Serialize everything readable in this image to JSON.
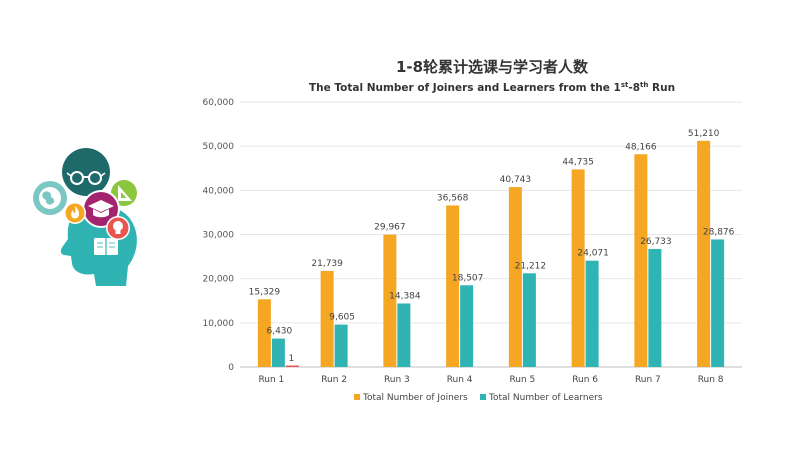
{
  "chart_data": {
    "type": "bar",
    "title": "1-8轮累计选课与学习者人数",
    "subtitle": {
      "prefix": "The Total Number of Joiners and Learners from the 1",
      "sup1": "st",
      "middle": "-8",
      "sup2": "th",
      "suffix": " Run"
    },
    "categories": [
      "Run 1",
      "Run 2",
      "Run 3",
      "Run 4",
      "Run 5",
      "Run 6",
      "Run 7",
      "Run 8"
    ],
    "series": [
      {
        "name": "Total Number of Joiners",
        "color": "#F5A623",
        "values": [
          15329,
          21739,
          29967,
          36568,
          40743,
          44735,
          48166,
          51210
        ],
        "labels": [
          "15,329",
          "21,739",
          "29,967",
          "36,568",
          "40,743",
          "44,735",
          "48,166",
          "51,210"
        ]
      },
      {
        "name": "Total Number of Learners",
        "color": "#2FB3B3",
        "values": [
          6430,
          9605,
          14384,
          18507,
          21212,
          24071,
          26733,
          28876
        ],
        "labels": [
          "6,430",
          "9,605",
          "14,384",
          "18,507",
          "21,212",
          "24,071",
          "26,733",
          "28,876"
        ]
      }
    ],
    "extra_bar": {
      "category_index": 0,
      "value": 1,
      "label": "1",
      "color": "#E8554E"
    },
    "ylim": [
      0,
      60000
    ],
    "yticks": [
      0,
      10000,
      20000,
      30000,
      40000,
      50000,
      60000
    ],
    "ytick_labels": [
      "0",
      "10,000",
      "20,000",
      "30,000",
      "40,000",
      "50,000",
      "60,000"
    ],
    "grid": true,
    "legend_position": "bottom"
  },
  "illustration": {
    "icons": [
      "globe-icon",
      "glasses-icon",
      "set-square-icon",
      "graduation-cap-icon",
      "flame-icon",
      "lightbulb-icon",
      "book-icon"
    ],
    "colors": {
      "head": "#2FB3B3",
      "globe_circle": "#7AC7C4",
      "top_circle": "#1E6A6A",
      "cap_circle": "#A3246E",
      "triangle_circle": "#8CC63F",
      "flame_circle": "#F5A623",
      "bulb_circle": "#E8554E"
    }
  }
}
